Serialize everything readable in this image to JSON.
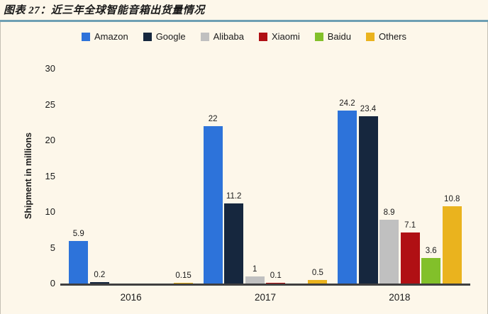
{
  "page": {
    "title": "图表 27：近三年全球智能音箱出货量情况"
  },
  "colors": {
    "background": "#FDF7EA",
    "title_rule": "#6E9FB3",
    "chart_border": "#C4C0B4",
    "axis_line": "#3F3F3F",
    "text": "#1A1A1A"
  },
  "chart_data": {
    "type": "bar",
    "title": "图表 27：近三年全球智能音箱出货量情况",
    "categories": [
      "2016",
      "2017",
      "2018"
    ],
    "series": [
      {
        "name": "Amazon",
        "color": "#2D73DA",
        "values": [
          5.9,
          22,
          24.2
        ]
      },
      {
        "name": "Google",
        "color": "#16273E",
        "values": [
          0.2,
          11.2,
          23.4
        ]
      },
      {
        "name": "Alibaba",
        "color": "#C0C0C0",
        "values": [
          0,
          1,
          8.9
        ]
      },
      {
        "name": "Xiaomi",
        "color": "#B01014",
        "values": [
          0,
          0.1,
          7.1
        ]
      },
      {
        "name": "Baidu",
        "color": "#82C02A",
        "values": [
          0,
          0,
          3.6
        ]
      },
      {
        "name": "Others",
        "color": "#EAB31E",
        "values": [
          0.15,
          0.5,
          10.8
        ]
      }
    ],
    "xlabel": "",
    "ylabel": "Shipment in millions",
    "yticks": [
      0,
      5,
      10,
      15,
      20,
      25,
      30
    ],
    "ylim": [
      0,
      30
    ],
    "legend_position": "top",
    "grid": false,
    "value_labels": true,
    "hide_zero_labels": true
  }
}
